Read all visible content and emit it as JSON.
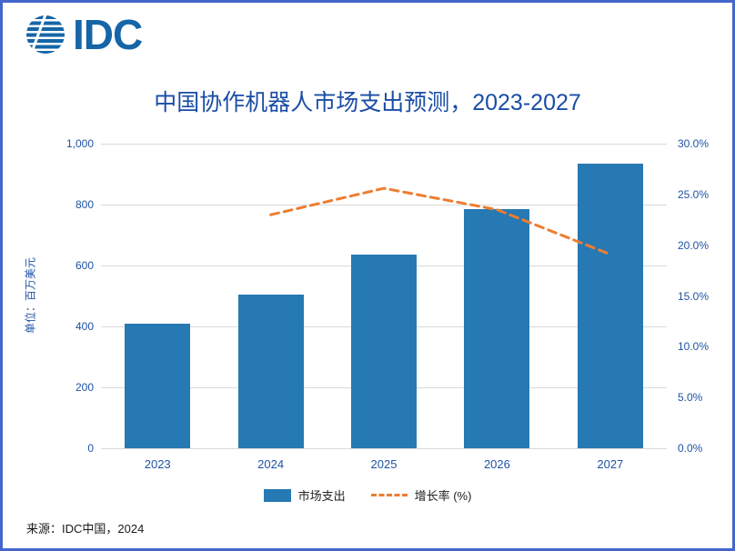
{
  "logo": {
    "text": "IDC"
  },
  "brand_color": "#1565A7",
  "border_color": "#4466CC",
  "title": "中国协作机器人市场支出预测，2023-2027",
  "left_axis": {
    "unit_label": "单位：百万美元",
    "ticks": [
      "1,000",
      "800",
      "600",
      "400",
      "200",
      "0"
    ]
  },
  "right_axis": {
    "ticks": [
      "30.0%",
      "25.0%",
      "20.0%",
      "15.0%",
      "10.0%",
      "5.0%",
      "0.0%"
    ]
  },
  "chart_data": {
    "type": "bar",
    "title": "中国协作机器人市场支出预测，2023-2027",
    "categories": [
      "2023",
      "2024",
      "2025",
      "2026",
      "2027"
    ],
    "series": [
      {
        "name": "市场支出",
        "type": "bar",
        "axis": "left",
        "color": "#2679B2",
        "values": [
          410,
          505,
          635,
          785,
          935
        ]
      },
      {
        "name": "增长率 (%)",
        "type": "line",
        "dashed": true,
        "axis": "right",
        "color": "#ED7D31",
        "values": [
          null,
          23.0,
          25.6,
          23.5,
          19.1
        ]
      }
    ],
    "ylabel_left": "单位：百万美元",
    "ylim_left": [
      0,
      1000
    ],
    "ylim_right": [
      0,
      30
    ],
    "grid": true,
    "legend_position": "bottom"
  },
  "legend": [
    {
      "label": "市场支出",
      "color": "#2679B2",
      "marker": "square"
    },
    {
      "label": "增长率  (%)",
      "color": "#ED7D31",
      "marker": "dashed-line"
    }
  ],
  "source": "来源：IDC中国，2024"
}
